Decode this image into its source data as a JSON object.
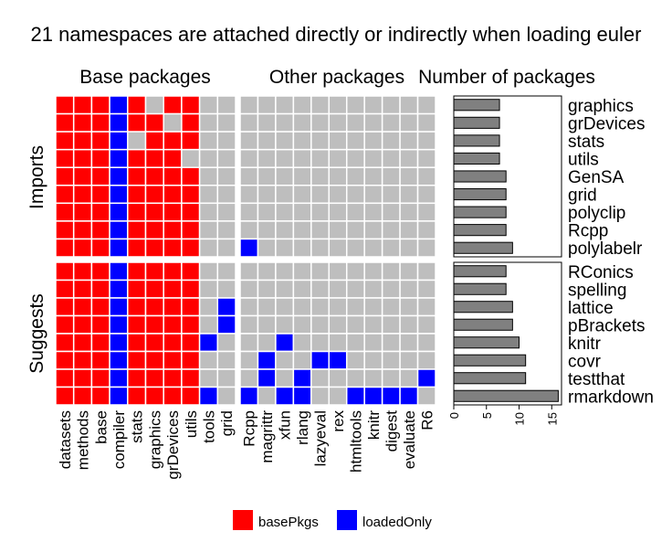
{
  "title": "21 namespaces are attached directly or indirectly when loading euler",
  "panels": {
    "base_title": "Base packages",
    "other_title": "Other packages",
    "count_title": "Number of packages"
  },
  "colors": {
    "basePkgs": "#ff0000",
    "loadedOnly": "#0000ff",
    "empty": "#bebebe",
    "bar": "#808080",
    "grid": "#ffffff"
  },
  "legend": [
    {
      "key": "basePkgs",
      "label": "basePkgs"
    },
    {
      "key": "loadedOnly",
      "label": "loadedOnly"
    }
  ],
  "chart_data": [
    {
      "type": "heatmap",
      "title": "Base packages",
      "facets": [
        "Imports",
        "Suggests"
      ],
      "columns": [
        "datasets",
        "methods",
        "base",
        "compiler",
        "stats",
        "graphics",
        "grDevices",
        "utils",
        "tools",
        "grid"
      ],
      "groups": [
        {
          "name": "Imports",
          "rows": [
            "graphics",
            "grDevices",
            "stats",
            "utils",
            "GenSA",
            "grid",
            "polyclip",
            "Rcpp",
            "polylabelr"
          ]
        },
        {
          "name": "Suggests",
          "rows": [
            "RConics",
            "spelling",
            "lattice",
            "pBrackets",
            "knitr",
            "covr",
            "testthat",
            "rmarkdown"
          ]
        }
      ],
      "cells": [
        "RRRBRNRRNN",
        "RRRBRRNRNN",
        "RRRBNRRRNN",
        "RRRBRRRNNN",
        "RRRBRRRRNN",
        "RRRBRRRRNN",
        "RRRBRRRRNN",
        "RRRBRRRRNN",
        "RRRBRRRRNN",
        "RRRBRRRRNN",
        "RRRBRRRRNN",
        "RRRBRRRRNB",
        "RRRBRRRRNB",
        "RRRBRRRRBN",
        "RRRBRRRRNN",
        "RRRBRRRRNN",
        "RRRBRRRRBN"
      ],
      "legend": {
        "R": "basePkgs",
        "B": "loadedOnly",
        "N": "none"
      }
    },
    {
      "type": "heatmap",
      "title": "Other packages",
      "columns": [
        "Rcpp",
        "magrittr",
        "xfun",
        "rlang",
        "lazyeval",
        "rex",
        "htmltools",
        "knitr",
        "digest",
        "evaluate",
        "R6"
      ],
      "cells": [
        "NNNNNNNNNNN",
        "NNNNNNNNNNN",
        "NNNNNNNNNNN",
        "NNNNNNNNNNN",
        "NNNNNNNNNNN",
        "NNNNNNNNNNN",
        "NNNNNNNNNNN",
        "NNNNNNNNNNN",
        "BNNNNNNNNNN",
        "NNNNNNNNNNN",
        "NNNNNNNNNNN",
        "NNNNNNNNNNN",
        "NNNNNNNNNNN",
        "NNBNNNNNNNN",
        "NBNNBBNNNNN",
        "NBNBNNNNNNB",
        "BNBBNNBBBBN"
      ]
    },
    {
      "type": "bar",
      "title": "Number of packages",
      "orientation": "horizontal",
      "groups": [
        {
          "name": "Imports",
          "categories": [
            "graphics",
            "grDevices",
            "stats",
            "utils",
            "GenSA",
            "grid",
            "polyclip",
            "Rcpp",
            "polylabelr"
          ],
          "values": [
            7,
            7,
            7,
            7,
            8,
            8,
            8,
            8,
            9
          ]
        },
        {
          "name": "Suggests",
          "categories": [
            "RConics",
            "spelling",
            "lattice",
            "pBrackets",
            "knitr",
            "covr",
            "testthat",
            "rmarkdown"
          ],
          "values": [
            8,
            8,
            9,
            9,
            10,
            11,
            11,
            16
          ]
        }
      ],
      "xticks": [
        0,
        5,
        10,
        15
      ],
      "xlim": [
        0,
        16.5
      ]
    }
  ]
}
